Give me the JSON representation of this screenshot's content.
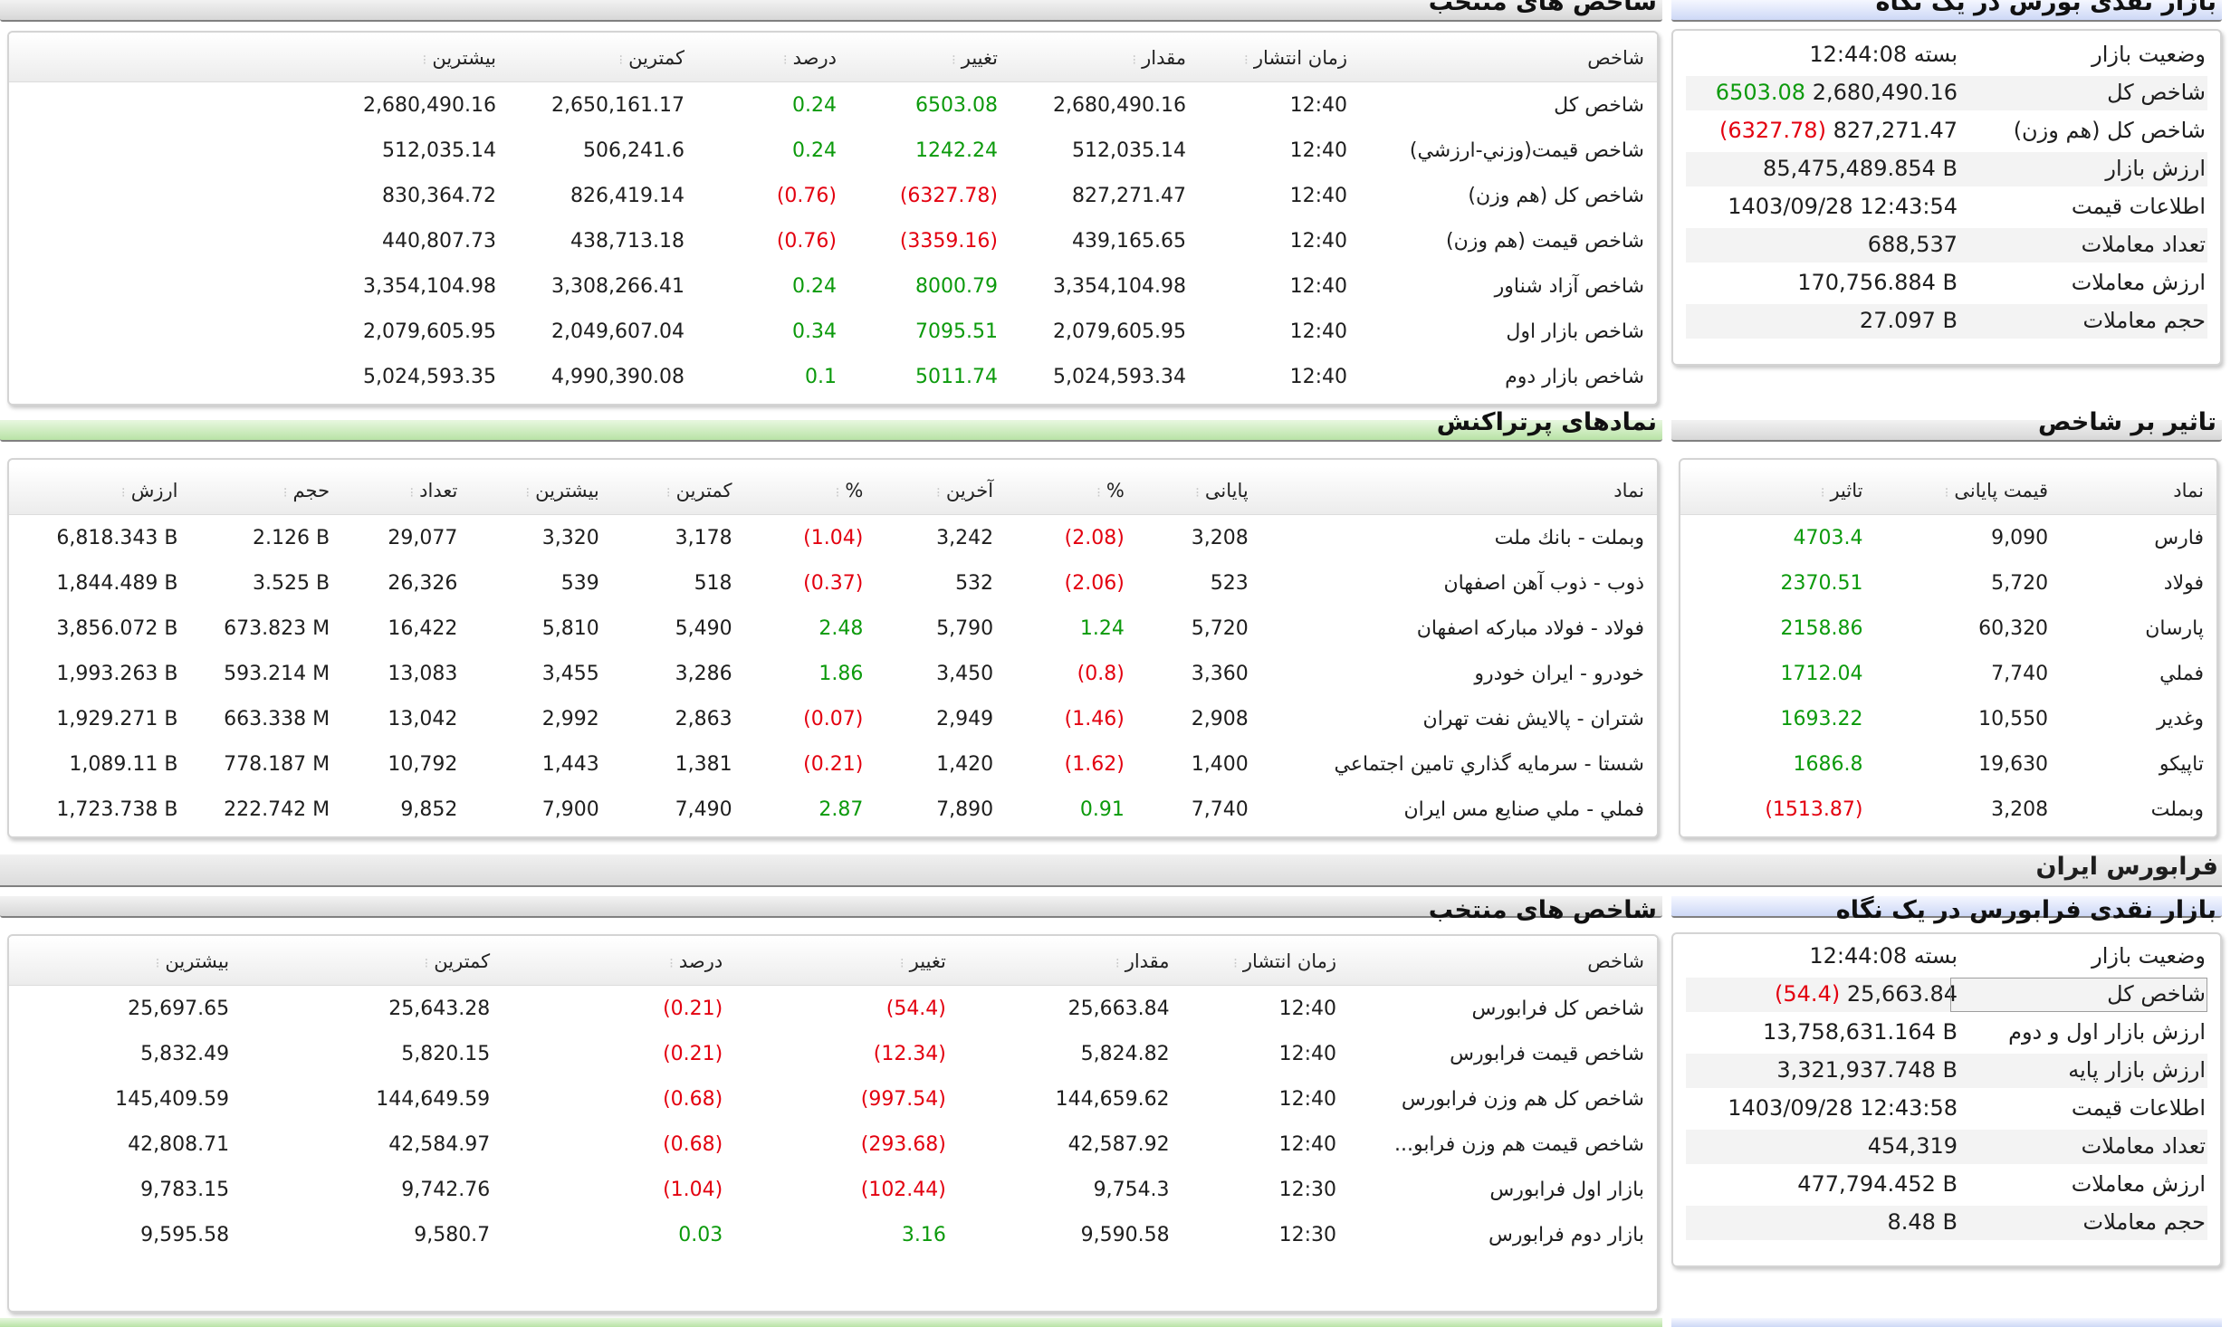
{
  "top": {
    "glance": {
      "title": "بازار نقدی بورس در یک نگاه",
      "rows": [
        {
          "key": "وضعیت بازار",
          "value": "بسته 12:44:08"
        },
        {
          "key": "شاخص کل",
          "value": "2,680,490.16",
          "change": "6503.08",
          "tone": "pos"
        },
        {
          "key": "شاخص کل (هم وزن)",
          "value": "827,271.47",
          "change": "(6327.78)",
          "tone": "neg"
        },
        {
          "key": "ارزش بازار",
          "value": "85,475,489.854 B"
        },
        {
          "key": "اطلاعات قیمت",
          "value": "1403/09/28 12:43:54"
        },
        {
          "key": "تعداد معاملات",
          "value": "688,537"
        },
        {
          "key": "ارزش معاملات",
          "value": "170,756.884 B"
        },
        {
          "key": "حجم معاملات",
          "value": "27.097 B"
        }
      ]
    },
    "indices": {
      "title": "شاخص های منتخب",
      "headers": [
        "شاخص",
        "زمان انتشار",
        "مقدار",
        "تغییر",
        "درصد",
        "کمترین",
        "بیشترین"
      ],
      "rows": [
        {
          "name": "شاخص کل",
          "time": "12:40",
          "value": "2,680,490.16",
          "change": "6503.08",
          "pct": "0.24",
          "min": "2,650,161.17",
          "max": "2,680,490.16",
          "tone": "pos"
        },
        {
          "name": "شاخص قیمت(وزني-ارزشي)",
          "time": "12:40",
          "value": "512,035.14",
          "change": "1242.24",
          "pct": "0.24",
          "min": "506,241.6",
          "max": "512,035.14",
          "tone": "pos"
        },
        {
          "name": "شاخص کل (هم وزن)",
          "time": "12:40",
          "value": "827,271.47",
          "change": "(6327.78)",
          "pct": "(0.76)",
          "min": "826,419.14",
          "max": "830,364.72",
          "tone": "neg"
        },
        {
          "name": "شاخص قیمت (هم وزن)",
          "time": "12:40",
          "value": "439,165.65",
          "change": "(3359.16)",
          "pct": "(0.76)",
          "min": "438,713.18",
          "max": "440,807.73",
          "tone": "neg"
        },
        {
          "name": "شاخص آزاد شناور",
          "time": "12:40",
          "value": "3,354,104.98",
          "change": "8000.79",
          "pct": "0.24",
          "min": "3,308,266.41",
          "max": "3,354,104.98",
          "tone": "pos"
        },
        {
          "name": "شاخص بازار اول",
          "time": "12:40",
          "value": "2,079,605.95",
          "change": "7095.51",
          "pct": "0.34",
          "min": "2,049,607.04",
          "max": "2,079,605.95",
          "tone": "pos"
        },
        {
          "name": "شاخص بازار دوم",
          "time": "12:40",
          "value": "5,024,593.34",
          "change": "5011.74",
          "pct": "0.1",
          "min": "4,990,390.08",
          "max": "5,024,593.35",
          "tone": "pos"
        }
      ]
    }
  },
  "impact": {
    "title": "تاثیر بر شاخص",
    "headers": [
      "نماد",
      "قیمت پایانی",
      "تاثیر"
    ],
    "rows": [
      {
        "symbol": "فارس",
        "close": "9,090",
        "impact": "4703.4",
        "tone": "pos"
      },
      {
        "symbol": "فولاد",
        "close": "5,720",
        "impact": "2370.51",
        "tone": "pos"
      },
      {
        "symbol": "پارسان",
        "close": "60,320",
        "impact": "2158.86",
        "tone": "pos"
      },
      {
        "symbol": "فملي",
        "close": "7,740",
        "impact": "1712.04",
        "tone": "pos"
      },
      {
        "symbol": "وغدير",
        "close": "10,550",
        "impact": "1693.22",
        "tone": "pos"
      },
      {
        "symbol": "تاپيكو",
        "close": "19,630",
        "impact": "1686.8",
        "tone": "pos"
      },
      {
        "symbol": "وبملت",
        "close": "3,208",
        "impact": "(1513.87)",
        "tone": "neg"
      }
    ]
  },
  "active": {
    "title": "نمادهای پرتراکنش",
    "headers": [
      "نماد",
      "پایانی",
      "%",
      "آخرین",
      "%",
      "کمترین",
      "بیشترین",
      "تعداد",
      "حجم",
      "ارزش"
    ],
    "rows": [
      {
        "symbol": "وبملت - بانك ملت",
        "close": "3,208",
        "closePct": "(2.08)",
        "closeTone": "neg",
        "last": "3,242",
        "lastPct": "(1.04)",
        "lastTone": "neg",
        "min": "3,178",
        "max": "3,320",
        "count": "29,077",
        "volume": "2.126 B",
        "value": "6,818.343 B"
      },
      {
        "symbol": "ذوب - ذوب آهن اصفهان",
        "close": "523",
        "closePct": "(2.06)",
        "closeTone": "neg",
        "last": "532",
        "lastPct": "(0.37)",
        "lastTone": "neg",
        "min": "518",
        "max": "539",
        "count": "26,326",
        "volume": "3.525 B",
        "value": "1,844.489 B"
      },
      {
        "symbol": "فولاد - فولاد مباركه اصفهان",
        "close": "5,720",
        "closePct": "1.24",
        "closeTone": "pos",
        "last": "5,790",
        "lastPct": "2.48",
        "lastTone": "pos",
        "min": "5,490",
        "max": "5,810",
        "count": "16,422",
        "volume": "673.823 M",
        "value": "3,856.072 B"
      },
      {
        "symbol": "خودرو - ايران خودرو",
        "close": "3,360",
        "closePct": "(0.8)",
        "closeTone": "neg",
        "last": "3,450",
        "lastPct": "1.86",
        "lastTone": "pos",
        "min": "3,286",
        "max": "3,455",
        "count": "13,083",
        "volume": "593.214 M",
        "value": "1,993.263 B"
      },
      {
        "symbol": "شتران - پالايش نفت تهران",
        "close": "2,908",
        "closePct": "(1.46)",
        "closeTone": "neg",
        "last": "2,949",
        "lastPct": "(0.07)",
        "lastTone": "neg",
        "min": "2,863",
        "max": "2,992",
        "count": "13,042",
        "volume": "663.338 M",
        "value": "1,929.271 B"
      },
      {
        "symbol": "شستا - سرمايه گذاري تامين اجتماعي",
        "close": "1,400",
        "closePct": "(1.62)",
        "closeTone": "neg",
        "last": "1,420",
        "lastPct": "(0.21)",
        "lastTone": "neg",
        "min": "1,381",
        "max": "1,443",
        "count": "10,792",
        "volume": "778.187 M",
        "value": "1,089.11 B"
      },
      {
        "symbol": "فملي - ملي صنايع مس ايران",
        "close": "7,740",
        "closePct": "0.91",
        "closeTone": "pos",
        "last": "7,890",
        "lastPct": "2.87",
        "lastTone": "pos",
        "min": "7,490",
        "max": "7,900",
        "count": "9,852",
        "volume": "222.742 M",
        "value": "1,723.738 B"
      }
    ]
  },
  "farabourse": {
    "section_title": "فرابورس ایران",
    "glance": {
      "title": "بازار نقدی فرابورس در یک نگاه",
      "rows": [
        {
          "key": "وضعیت بازار",
          "value": "بسته 12:44:08"
        },
        {
          "key": "شاخص کل",
          "value": "25,663.84",
          "change": "(54.4)",
          "tone": "neg"
        },
        {
          "key": "ارزش بازار اول و دوم",
          "value": "13,758,631.164 B"
        },
        {
          "key": "ارزش بازار پایه",
          "value": "3,321,937.748 B"
        },
        {
          "key": "اطلاعات قیمت",
          "value": "1403/09/28 12:43:58"
        },
        {
          "key": "تعداد معاملات",
          "value": "454,319"
        },
        {
          "key": "ارزش معاملات",
          "value": "477,794.452 B"
        },
        {
          "key": "حجم معاملات",
          "value": "8.48 B"
        }
      ]
    },
    "indices": {
      "title": "شاخص های منتخب",
      "headers": [
        "شاخص",
        "زمان انتشار",
        "مقدار",
        "تغییر",
        "درصد",
        "کمترین",
        "بیشترین"
      ],
      "rows": [
        {
          "name": "شاخص کل فرابورس",
          "time": "12:40",
          "value": "25,663.84",
          "change": "(54.4)",
          "pct": "(0.21)",
          "min": "25,643.28",
          "max": "25,697.65",
          "tone": "neg"
        },
        {
          "name": "شاخص قیمت فرابورس",
          "time": "12:40",
          "value": "5,824.82",
          "change": "(12.34)",
          "pct": "(0.21)",
          "min": "5,820.15",
          "max": "5,832.49",
          "tone": "neg"
        },
        {
          "name": "شاخص کل هم وزن فرابورس",
          "time": "12:40",
          "value": "144,659.62",
          "change": "(997.54)",
          "pct": "(0.68)",
          "min": "144,649.59",
          "max": "145,409.59",
          "tone": "neg"
        },
        {
          "name": "شاخص قیمت هم وزن فرابو...",
          "time": "12:40",
          "value": "42,587.92",
          "change": "(293.68)",
          "pct": "(0.68)",
          "min": "42,584.97",
          "max": "42,808.71",
          "tone": "neg"
        },
        {
          "name": "بازار اول فرابورس",
          "time": "12:30",
          "value": "9,754.3",
          "change": "(102.44)",
          "pct": "(1.04)",
          "min": "9,742.76",
          "max": "9,783.15",
          "tone": "neg"
        },
        {
          "name": "بازار دوم فرابورس",
          "time": "12:30",
          "value": "9,590.58",
          "change": "3.16",
          "pct": "0.03",
          "min": "9,580.7",
          "max": "9,595.58",
          "tone": "pos"
        }
      ]
    }
  }
}
